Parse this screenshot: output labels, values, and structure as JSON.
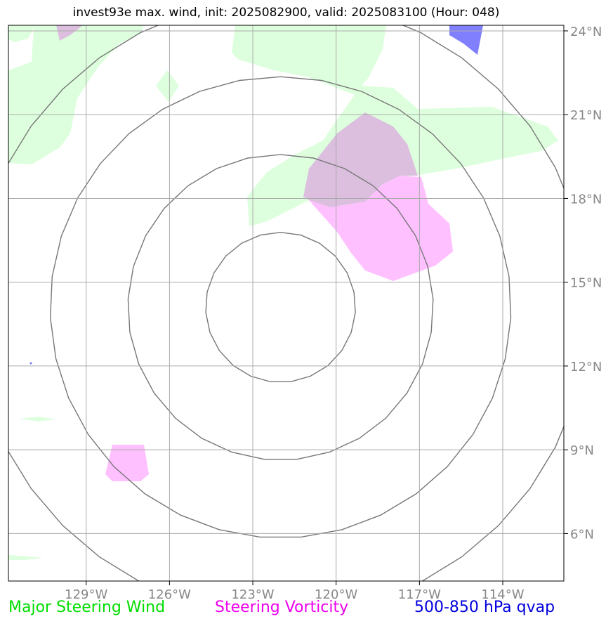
{
  "title": "invest93e max. wind, init: 2025082900, valid: 2025083100 (Hour: 048)",
  "map": {
    "lon_range": [
      -131.8,
      -111.8
    ],
    "lat_range": [
      4.3,
      24.2
    ],
    "lon_ticks": [
      -129,
      -126,
      -123,
      -120,
      -117,
      -114
    ],
    "lon_tick_labels": [
      "129°W",
      "126°W",
      "123°W",
      "120°W",
      "117°W",
      "114°W"
    ],
    "lat_ticks": [
      6,
      9,
      12,
      15,
      18,
      21,
      24
    ],
    "lat_tick_labels": [
      "6°N",
      "9°N",
      "12°N",
      "15°N",
      "18°N",
      "21°N",
      "24°N"
    ],
    "grid": true,
    "range_rings": {
      "center": [
        -122.0,
        14.1
      ],
      "radii_deg": [
        2.7,
        5.5,
        8.3,
        11.1
      ],
      "color": "#777777"
    }
  },
  "legend": {
    "steering_wind": "Major Steering Wind",
    "steering_vorticity": "Steering Vorticity",
    "qvap": "500-850 hPa qvap"
  },
  "colors": {
    "steering_wind_fill": "#ddffdd",
    "steering_vorticity_fill": "#ffc0ff",
    "overlap_fill": "#dcbfdf",
    "qvap_fill": "#8080ff",
    "legend_green": "#00dd00",
    "legend_magenta": "#ee00ee",
    "legend_blue": "#0000dd"
  }
}
